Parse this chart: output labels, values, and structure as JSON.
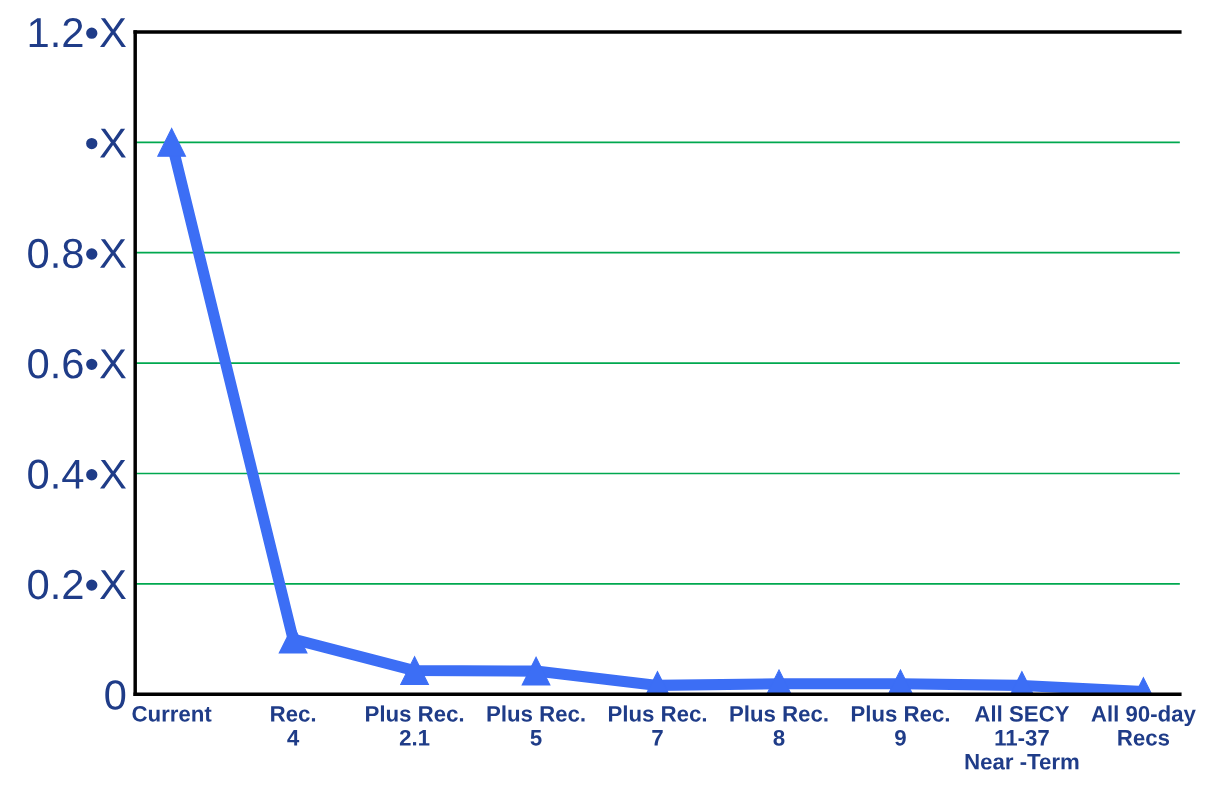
{
  "chart_data": {
    "type": "line",
    "categories": [
      "Current",
      "Rec.\n4",
      "Plus Rec.\n2.1",
      "Plus Rec.\n5",
      "Plus Rec.\n7",
      "Plus Rec.\n8",
      "Plus Rec.\n9",
      "All SECY\n11-37\nNear -Term",
      "All 90-day\nRecs"
    ],
    "series": [
      {
        "color": "#3c6ef5",
        "values": [
          1.0,
          0.1,
          0.043,
          0.042,
          0.016,
          0.019,
          0.019,
          0.016,
          0.005
        ]
      }
    ],
    "ylim": [
      0,
      1.2
    ],
    "yticks": [
      {
        "value": 0,
        "label": "0"
      },
      {
        "value": 0.2,
        "label": "0.2•X"
      },
      {
        "value": 0.4,
        "label": "0.4•X"
      },
      {
        "value": 0.6,
        "label": "0.6•X"
      },
      {
        "value": 0.8,
        "label": "0.8•X"
      },
      {
        "value": 1.0,
        "label": "•X"
      },
      {
        "value": 1.2,
        "label": "1.2•X"
      }
    ],
    "grid": "y",
    "marker": "triangle",
    "line_style": "solid",
    "legend": false
  }
}
